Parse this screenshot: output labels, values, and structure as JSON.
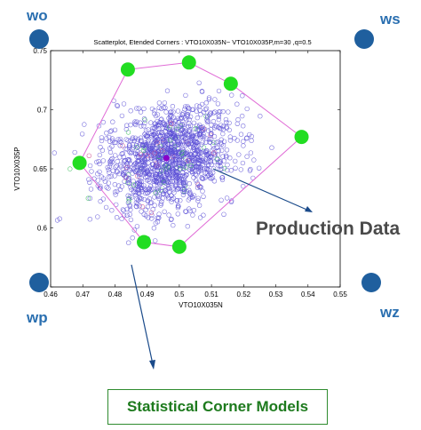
{
  "corner_labels": {
    "wo": "wo",
    "ws": "ws",
    "wp": "wp",
    "wz": "wz"
  },
  "annotations": {
    "production": "Production Data",
    "statistical": "Statistical Corner Models"
  },
  "colors": {
    "scatter": "#5a4fd6",
    "hull": "#e06bd6",
    "corner_points": "#22dd22",
    "corner_markers": "#1f5f9e",
    "label_text": "#2a6fb0",
    "statistical_text": "#1d7a1d",
    "center": "#8a00c8"
  },
  "chart_data": {
    "type": "scatter",
    "title": "Scatterplot, Etended Corners :  VTO10X035N~ VTO10X035P,m=30 ,q=0.5",
    "xlabel": "VTO10X035N",
    "ylabel": "VTO10X035P",
    "xlim": [
      0.46,
      0.55
    ],
    "ylim": [
      0.55,
      0.75
    ],
    "xticks": [
      "0.46",
      "0.47",
      "0.48",
      "0.49",
      "0.5",
      "0.51",
      "0.52",
      "0.53",
      "0.54",
      "0.55"
    ],
    "yticks": [
      "0.55",
      "0.6",
      "0.65",
      "0.7",
      "0.75"
    ],
    "grid": false,
    "scatter_cloud": {
      "center": [
        0.496,
        0.658
      ],
      "spread": [
        0.01,
        0.022
      ],
      "rho": 0.25,
      "count": 1400
    },
    "center_point": [
      0.496,
      0.659
    ],
    "corner_points": [
      [
        0.484,
        0.734
      ],
      [
        0.503,
        0.74
      ],
      [
        0.516,
        0.722
      ],
      [
        0.538,
        0.677
      ],
      [
        0.5,
        0.584
      ],
      [
        0.489,
        0.588
      ],
      [
        0.469,
        0.655
      ]
    ]
  }
}
